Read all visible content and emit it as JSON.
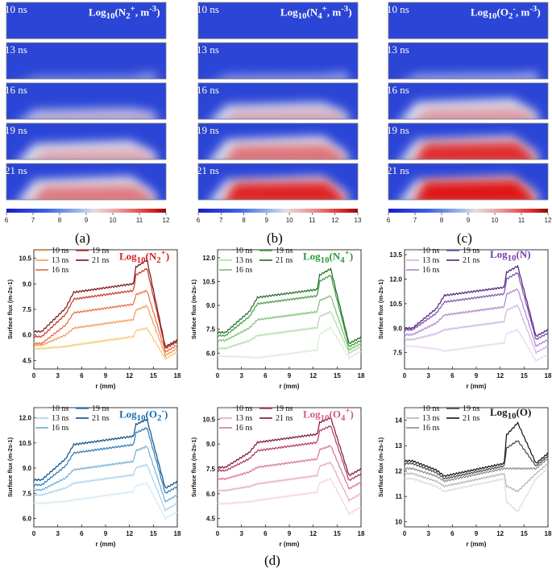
{
  "figure": {
    "label": "(d)"
  },
  "heatmaps": [
    {
      "id": "a",
      "label": "(a)",
      "title": "Log10(N2+, m-3)",
      "title_html": "Log<sub>10</sub>(N<sub>2</sub><sup>+</sup>, m<sup>-3</sup>)",
      "colorbar_ticks": [
        "6",
        "7",
        "8",
        "9",
        "10",
        "11",
        "12"
      ],
      "snapshots": [
        {
          "time": "10 ns",
          "intensity": 0.0
        },
        {
          "time": "13 ns",
          "intensity": 0.08
        },
        {
          "time": "16 ns",
          "intensity": 0.3
        },
        {
          "time": "19 ns",
          "intensity": 0.5
        },
        {
          "time": "21 ns",
          "intensity": 0.72
        }
      ]
    },
    {
      "id": "b",
      "label": "(b)",
      "title": "Log10(N4+, m-3)",
      "title_html": "Log<sub>10</sub>(N<sub>4</sub><sup>+</sup>, m<sup>-3</sup>)",
      "colorbar_ticks": [
        "6",
        "7",
        "8",
        "9",
        "10",
        "11",
        "12",
        "13"
      ],
      "snapshots": [
        {
          "time": "10 ns",
          "intensity": 0.0
        },
        {
          "time": "13 ns",
          "intensity": 0.12
        },
        {
          "time": "16 ns",
          "intensity": 0.45
        },
        {
          "time": "19 ns",
          "intensity": 0.75
        },
        {
          "time": "21 ns",
          "intensity": 0.92
        }
      ]
    },
    {
      "id": "c",
      "label": "(c)",
      "title": "Log10(O2-, m-3)",
      "title_html": "Log<sub>10</sub>(O<sub>2</sub><sup>-</sup>, m<sup>-3</sup>)",
      "colorbar_ticks": [
        "6",
        "7",
        "8",
        "9",
        "10",
        "11",
        "12"
      ],
      "snapshots": [
        {
          "time": "10 ns",
          "intensity": 0.0
        },
        {
          "time": "13 ns",
          "intensity": 0.15
        },
        {
          "time": "16 ns",
          "intensity": 0.55
        },
        {
          "time": "19 ns",
          "intensity": 0.88
        },
        {
          "time": "21 ns",
          "intensity": 1.0
        }
      ]
    }
  ],
  "chart_data": [
    {
      "type": "line",
      "id": "n2plus",
      "title": "Log10(N2+)",
      "title_html": "Log<sub>10</sub>(N<sub>2</sub><sup>+</sup>)",
      "title_color": "#d42020",
      "xlabel": "r (mm)",
      "ylabel": "Surface flux (m-2s-1)",
      "xticks": [
        "0",
        "3",
        "6",
        "9",
        "12",
        "15",
        "18"
      ],
      "xlim": [
        0,
        18
      ],
      "yticks": [
        "4.5",
        "6.0",
        "7.5",
        "9.0",
        "10.5"
      ],
      "ylim": [
        4.0,
        11.0
      ],
      "series": [
        {
          "name": "10 ns",
          "color": "#f7c86a",
          "base": 5.2,
          "plateau": 5.9,
          "peak": 6.4,
          "end": 4.6
        },
        {
          "name": "13 ns",
          "color": "#f39a55",
          "base": 5.4,
          "plateau": 6.9,
          "peak": 7.7,
          "end": 4.8
        },
        {
          "name": "16 ns",
          "color": "#e66a3f",
          "base": 5.5,
          "plateau": 7.8,
          "peak": 8.6,
          "end": 5.0
        },
        {
          "name": "19 ns",
          "color": "#c4342a",
          "base": 5.9,
          "plateau": 8.6,
          "peak": 9.9,
          "end": 5.2
        },
        {
          "name": "21 ns",
          "color": "#7a1010",
          "base": 6.2,
          "plateau": 9.0,
          "peak": 10.4,
          "end": 5.3
        }
      ]
    },
    {
      "type": "line",
      "id": "n4plus",
      "title": "Log10(N4+)",
      "title_html": "Log<sub>10</sub>(N<sub>4</sub><sup>+</sup>)",
      "title_color": "#2a9a3a",
      "xlabel": "r (mm)",
      "ylabel": "Surface flux (m-2s-1)",
      "xticks": [
        "0",
        "3",
        "6",
        "9",
        "12",
        "15",
        "18"
      ],
      "xlim": [
        0,
        18
      ],
      "yticks": [
        "6.0",
        "7.5",
        "9.0",
        "10.5",
        "12.0"
      ],
      "ylim": [
        5.0,
        12.5
      ],
      "series": [
        {
          "name": "10 ns",
          "color": "#d7ecd2",
          "base": 5.8,
          "plateau": 6.2,
          "peak": 7.6,
          "end": 5.7
        },
        {
          "name": "13 ns",
          "color": "#b0dba8",
          "base": 6.3,
          "plateau": 7.6,
          "peak": 8.6,
          "end": 6.0
        },
        {
          "name": "16 ns",
          "color": "#7cc272",
          "base": 6.8,
          "plateau": 8.6,
          "peak": 9.6,
          "end": 6.2
        },
        {
          "name": "19 ns",
          "color": "#3f9e40",
          "base": 7.1,
          "plateau": 9.6,
          "peak": 10.9,
          "end": 6.4
        },
        {
          "name": "21 ns",
          "color": "#1e6b25",
          "base": 7.3,
          "plateau": 10.0,
          "peak": 11.3,
          "end": 6.6
        }
      ]
    },
    {
      "type": "line",
      "id": "n",
      "title": "Log10(N)",
      "title_html": "Log<sub>10</sub>(N)",
      "title_color": "#7a3aa8",
      "xlabel": "r (mm)",
      "ylabel": "Surface flux (m-2s-1)",
      "xticks": [
        "0",
        "3",
        "6",
        "9",
        "12",
        "15",
        "18"
      ],
      "xlim": [
        0,
        18
      ],
      "yticks": [
        "7.5",
        "9.0",
        "10.5",
        "12.0",
        "13.5"
      ],
      "ylim": [
        6.5,
        13.8
      ],
      "series": [
        {
          "name": "10 ns",
          "color": "#e6d8ef",
          "base": 7.9,
          "plateau": 8.1,
          "peak": 8.9,
          "end": 7.0
        },
        {
          "name": "13 ns",
          "color": "#cdb3e0",
          "base": 8.3,
          "plateau": 9.4,
          "peak": 10.4,
          "end": 7.5
        },
        {
          "name": "16 ns",
          "color": "#a985cb",
          "base": 8.6,
          "plateau": 10.3,
          "peak": 11.4,
          "end": 7.9
        },
        {
          "name": "19 ns",
          "color": "#7d4fb0",
          "base": 8.9,
          "plateau": 11.1,
          "peak": 12.4,
          "end": 8.3
        },
        {
          "name": "21 ns",
          "color": "#4f1f80",
          "base": 9.0,
          "plateau": 11.5,
          "peak": 12.8,
          "end": 8.5
        }
      ]
    },
    {
      "type": "line",
      "id": "o2minus",
      "title": "Log10(O2-)",
      "title_html": "Log<sub>10</sub>(O<sub>2</sub><sup>-</sup>)",
      "title_color": "#1a6fb0",
      "xlabel": "r (mm)",
      "ylabel": "Surface flux (m-2s-1)",
      "xticks": [
        "0",
        "3",
        "6",
        "9",
        "12",
        "15",
        "18"
      ],
      "xlim": [
        0,
        18
      ],
      "yticks": [
        "6.0",
        "7.5",
        "9.0",
        "10.5",
        "12.0"
      ],
      "ylim": [
        5.5,
        12.6
      ],
      "series": [
        {
          "name": "10 ns",
          "color": "#d4e8f5",
          "base": 6.9,
          "plateau": 7.6,
          "peak": 8.1,
          "end": 6.0
        },
        {
          "name": "13 ns",
          "color": "#a9d1ec",
          "base": 7.4,
          "plateau": 8.6,
          "peak": 9.2,
          "end": 6.5
        },
        {
          "name": "16 ns",
          "color": "#6eaed8",
          "base": 7.7,
          "plateau": 9.4,
          "peak": 10.3,
          "end": 7.0
        },
        {
          "name": "19 ns",
          "color": "#2b7bbd",
          "base": 8.0,
          "plateau": 10.4,
          "peak": 11.4,
          "end": 7.5
        },
        {
          "name": "21 ns",
          "color": "#0d4d80",
          "base": 8.3,
          "plateau": 10.9,
          "peak": 11.9,
          "end": 7.8
        }
      ]
    },
    {
      "type": "line",
      "id": "o4plus",
      "title": "Log10(O4+)",
      "title_html": "Log<sub>10</sub>(O<sub>4</sub><sup>+</sup>)",
      "title_color": "#d05a80",
      "xlabel": "r (mm)",
      "ylabel": "Surface flux (m-2s-1)",
      "xticks": [
        "0",
        "3",
        "6",
        "9",
        "12",
        "15",
        "18"
      ],
      "xlim": [
        0,
        18
      ],
      "yticks": [
        "4.5",
        "6.0",
        "7.5",
        "9.0",
        "10.5"
      ],
      "ylim": [
        4.0,
        11.2
      ],
      "series": [
        {
          "name": "10 ns",
          "color": "#f2d3de",
          "base": 5.4,
          "plateau": 6.1,
          "peak": 6.9,
          "end": 4.8
        },
        {
          "name": "13 ns",
          "color": "#e8a9c0",
          "base": 6.2,
          "plateau": 7.1,
          "peak": 7.9,
          "end": 5.6
        },
        {
          "name": "16 ns",
          "color": "#d77399",
          "base": 6.9,
          "plateau": 8.1,
          "peak": 8.9,
          "end": 6.3
        },
        {
          "name": "19 ns",
          "color": "#b43366",
          "base": 7.4,
          "plateau": 9.1,
          "peak": 10.1,
          "end": 6.8
        },
        {
          "name": "21 ns",
          "color": "#7d1040",
          "base": 7.6,
          "plateau": 9.6,
          "peak": 10.6,
          "end": 7.1
        }
      ]
    },
    {
      "type": "line",
      "id": "o",
      "title": "Log10(O)",
      "title_html": "Log<sub>10</sub>(O)",
      "title_color": "#1a1a1a",
      "xlabel": "r (mm)",
      "ylabel": "Surface flux (m-2s-1)",
      "xticks": [
        "0",
        "3",
        "6",
        "9",
        "12",
        "15",
        "18"
      ],
      "xlim": [
        0,
        18
      ],
      "yticks": [
        "10",
        "11",
        "12",
        "13",
        "14"
      ],
      "ylim": [
        9.8,
        14.5
      ],
      "series": [
        {
          "name": "10 ns",
          "color": "#dcdcdc",
          "base": 11.7,
          "plateau": 11.7,
          "peak": 10.4,
          "end": 11.7
        },
        {
          "name": "13 ns",
          "color": "#b5b5b5",
          "base": 11.9,
          "plateau": 11.9,
          "peak": 11.2,
          "end": 11.9
        },
        {
          "name": "16 ns",
          "color": "#8a8a8a",
          "base": 12.1,
          "plateau": 12.1,
          "peak": 12.1,
          "end": 12.1
        },
        {
          "name": "19 ns",
          "color": "#4a4a4a",
          "base": 12.3,
          "plateau": 12.2,
          "peak": 13.2,
          "end": 12.2
        },
        {
          "name": "21 ns",
          "color": "#111111",
          "base": 12.4,
          "plateau": 12.3,
          "peak": 13.9,
          "end": 12.3
        }
      ]
    }
  ]
}
